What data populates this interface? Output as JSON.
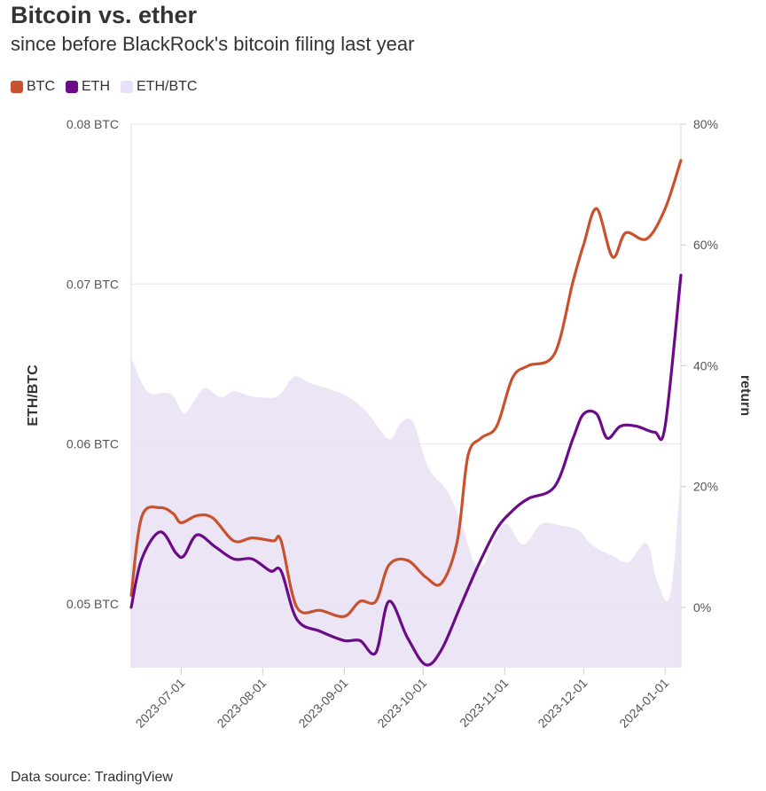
{
  "title": "Bitcoin vs. ether",
  "subtitle": "since before BlackRock's bitcoin filing last year",
  "source": "Data source: TradingView",
  "legend": [
    {
      "name": "BTC",
      "color": "#c8522d"
    },
    {
      "name": "ETH",
      "color": "#6b0b88"
    },
    {
      "name": "ETH/BTC",
      "color": "#e8e0f5"
    }
  ],
  "chart_data": {
    "type": "line",
    "ylabel_left": "ETH/BTC",
    "ylabel_right": "return",
    "x_tick_labels": [
      "2023-07-01",
      "2023-08-01",
      "2023-09-01",
      "2023-10-01",
      "2023-11-01",
      "2023-12-01",
      "2024-01-01"
    ],
    "y_left_ticks": [
      "0.05 BTC",
      "0.06 BTC",
      "0.07 BTC",
      "0.08 BTC"
    ],
    "y_right_ticks": [
      "0%",
      "20%",
      "40%",
      "60%",
      "80%"
    ],
    "y_left_range": [
      0.046,
      0.08
    ],
    "y_right_range": [
      -10,
      80
    ],
    "x_range": [
      "2023-06-12",
      "2024-01-07"
    ],
    "series": [
      {
        "name": "ETH/BTC",
        "axis": "left",
        "kind": "area",
        "color": "#e8e0f5",
        "points": [
          [
            "2023-06-12",
            0.0654
          ],
          [
            "2023-06-18",
            0.0633
          ],
          [
            "2023-06-25",
            0.0632
          ],
          [
            "2023-06-28",
            0.063
          ],
          [
            "2023-07-02",
            0.0619
          ],
          [
            "2023-07-06",
            0.0627
          ],
          [
            "2023-07-10",
            0.0635
          ],
          [
            "2023-07-16",
            0.0629
          ],
          [
            "2023-07-21",
            0.0633
          ],
          [
            "2023-07-27",
            0.063
          ],
          [
            "2023-08-01",
            0.0629
          ],
          [
            "2023-08-07",
            0.063
          ],
          [
            "2023-08-13",
            0.0642
          ],
          [
            "2023-08-19",
            0.0638
          ],
          [
            "2023-08-27",
            0.0634
          ],
          [
            "2023-09-03",
            0.0629
          ],
          [
            "2023-09-10",
            0.0619
          ],
          [
            "2023-09-18",
            0.0603
          ],
          [
            "2023-09-22",
            0.0612
          ],
          [
            "2023-09-27",
            0.0614
          ],
          [
            "2023-10-03",
            0.0585
          ],
          [
            "2023-10-10",
            0.0571
          ],
          [
            "2023-10-15",
            0.0553
          ],
          [
            "2023-10-22",
            0.0522
          ],
          [
            "2023-10-29",
            0.0543
          ],
          [
            "2023-11-02",
            0.055
          ],
          [
            "2023-11-08",
            0.0537
          ],
          [
            "2023-11-15",
            0.055
          ],
          [
            "2023-11-22",
            0.0549
          ],
          [
            "2023-11-29",
            0.0546
          ],
          [
            "2023-12-04",
            0.0537
          ],
          [
            "2023-12-12",
            0.053
          ],
          [
            "2023-12-18",
            0.0526
          ],
          [
            "2023-12-25",
            0.0538
          ],
          [
            "2023-12-29",
            0.0514
          ],
          [
            "2024-01-03",
            0.0506
          ],
          [
            "2024-01-07",
            0.0581
          ]
        ]
      },
      {
        "name": "BTC",
        "axis": "right",
        "kind": "line",
        "color": "#c8522d",
        "points": [
          [
            "2023-06-12",
            2
          ],
          [
            "2023-06-16",
            15
          ],
          [
            "2023-06-23",
            16.5
          ],
          [
            "2023-06-28",
            15.5
          ],
          [
            "2023-07-01",
            14
          ],
          [
            "2023-07-07",
            15.2
          ],
          [
            "2023-07-13",
            14.8
          ],
          [
            "2023-07-21",
            11
          ],
          [
            "2023-07-28",
            11.5
          ],
          [
            "2023-08-05",
            11
          ],
          [
            "2023-08-08",
            11
          ],
          [
            "2023-08-14",
            0
          ],
          [
            "2023-08-23",
            -0.5
          ],
          [
            "2023-09-01",
            -1.5
          ],
          [
            "2023-09-07",
            1
          ],
          [
            "2023-09-13",
            1
          ],
          [
            "2023-09-18",
            7
          ],
          [
            "2023-09-25",
            7.8
          ],
          [
            "2023-10-02",
            5
          ],
          [
            "2023-10-08",
            4
          ],
          [
            "2023-10-14",
            11
          ],
          [
            "2023-10-18",
            25
          ],
          [
            "2023-10-23",
            28
          ],
          [
            "2023-10-29",
            30
          ],
          [
            "2023-11-04",
            38
          ],
          [
            "2023-11-10",
            40
          ],
          [
            "2023-11-20",
            42
          ],
          [
            "2023-11-27",
            54
          ],
          [
            "2023-12-01",
            60
          ],
          [
            "2023-12-06",
            66
          ],
          [
            "2023-12-12",
            58
          ],
          [
            "2023-12-17",
            62
          ],
          [
            "2023-12-25",
            61
          ],
          [
            "2024-01-01",
            66
          ],
          [
            "2024-01-07",
            74
          ]
        ]
      },
      {
        "name": "ETH",
        "axis": "right",
        "kind": "line",
        "color": "#6b0b88",
        "points": [
          [
            "2023-06-12",
            0
          ],
          [
            "2023-06-16",
            8
          ],
          [
            "2023-06-23",
            12.5
          ],
          [
            "2023-06-29",
            9
          ],
          [
            "2023-07-02",
            8.5
          ],
          [
            "2023-07-07",
            12
          ],
          [
            "2023-07-14",
            10
          ],
          [
            "2023-07-21",
            8
          ],
          [
            "2023-07-28",
            8
          ],
          [
            "2023-08-04",
            6
          ],
          [
            "2023-08-08",
            6
          ],
          [
            "2023-08-14",
            -2
          ],
          [
            "2023-08-23",
            -4
          ],
          [
            "2023-09-01",
            -5.5
          ],
          [
            "2023-09-07",
            -5.5
          ],
          [
            "2023-09-13",
            -7.5
          ],
          [
            "2023-09-18",
            1
          ],
          [
            "2023-09-25",
            -5
          ],
          [
            "2023-10-02",
            -9.5
          ],
          [
            "2023-10-08",
            -7
          ],
          [
            "2023-10-15",
            0
          ],
          [
            "2023-10-22",
            7
          ],
          [
            "2023-10-29",
            13
          ],
          [
            "2023-11-04",
            16
          ],
          [
            "2023-11-10",
            18
          ],
          [
            "2023-11-20",
            20
          ],
          [
            "2023-11-27",
            28
          ],
          [
            "2023-12-01",
            32
          ],
          [
            "2023-12-06",
            32
          ],
          [
            "2023-12-10",
            28
          ],
          [
            "2023-12-15",
            30
          ],
          [
            "2023-12-21",
            30
          ],
          [
            "2023-12-28",
            29
          ],
          [
            "2024-01-01",
            30
          ],
          [
            "2024-01-07",
            55
          ]
        ]
      }
    ]
  }
}
